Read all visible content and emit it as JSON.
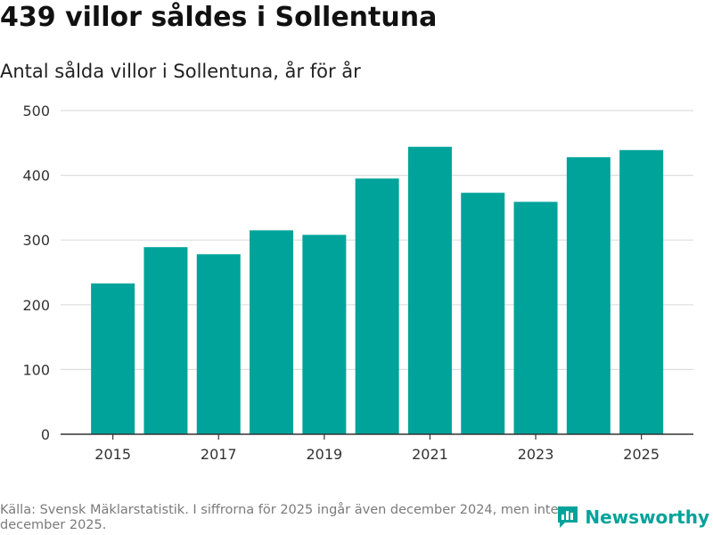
{
  "title": "439 villor såldes i Sollentuna",
  "subtitle": "Antal sålda villor i Sollentuna, år för år",
  "source": "Källa: Svensk Mäklarstatistik. I siffrorna för 2025 ingår även december 2024, men inte december 2025.",
  "brand": {
    "name": "Newsworthy",
    "logo_icon": "bar-chart-logo-icon"
  },
  "colors": {
    "bar": "#00a39a",
    "grid": "#dddddd",
    "axis": "#333333",
    "brand": "#00a39a"
  },
  "chart_data": {
    "type": "bar",
    "title": "439 villor såldes i Sollentuna",
    "subtitle": "Antal sålda villor i Sollentuna, år för år",
    "xlabel": "",
    "ylabel": "",
    "categories": [
      "2015",
      "2016",
      "2017",
      "2018",
      "2019",
      "2020",
      "2021",
      "2022",
      "2023",
      "2024",
      "2025"
    ],
    "values": [
      233,
      289,
      278,
      315,
      308,
      395,
      444,
      373,
      359,
      428,
      439
    ],
    "ylim": [
      0,
      500
    ],
    "yticks": [
      0,
      100,
      200,
      300,
      400,
      500
    ],
    "xtick_labels": [
      "2015",
      "2017",
      "2019",
      "2021",
      "2023",
      "2025"
    ],
    "grid": true,
    "legend": "none"
  }
}
